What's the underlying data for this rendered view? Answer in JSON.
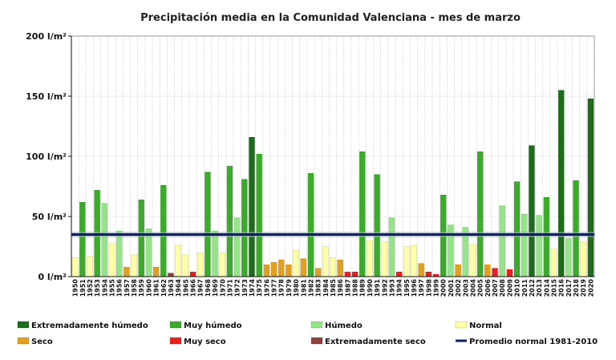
{
  "chart_data": {
    "type": "bar",
    "title": "Precipitación media en la Comunidad Valenciana - mes de marzo",
    "xlabel": "",
    "ylabel": "",
    "ylim": [
      0,
      200
    ],
    "yticks": [
      {
        "value": 0,
        "label": "0 l/m²"
      },
      {
        "value": 50,
        "label": "50 l/m²"
      },
      {
        "value": 100,
        "label": "100 l/m²"
      },
      {
        "value": 150,
        "label": "150 l/m²"
      },
      {
        "value": 200,
        "label": "200 l/m²"
      }
    ],
    "grid": true,
    "categories": [
      "1950",
      "1951",
      "1952",
      "1953",
      "1954",
      "1955",
      "1956",
      "1957",
      "1958",
      "1959",
      "1960",
      "1961",
      "1962",
      "1963",
      "1964",
      "1965",
      "1966",
      "1967",
      "1968",
      "1969",
      "1970",
      "1971",
      "1972",
      "1973",
      "1974",
      "1975",
      "1976",
      "1977",
      "1978",
      "1979",
      "1980",
      "1981",
      "1982",
      "1983",
      "1984",
      "1985",
      "1986",
      "1987",
      "1988",
      "1989",
      "1990",
      "1991",
      "1992",
      "1993",
      "1994",
      "1995",
      "1996",
      "1997",
      "1998",
      "1999",
      "2000",
      "2001",
      "2002",
      "2003",
      "2004",
      "2005",
      "2006",
      "2007",
      "2008",
      "2009",
      "2010",
      "2011",
      "2012",
      "2013",
      "2014",
      "2015",
      "2016",
      "2017",
      "2018",
      "2019",
      "2020"
    ],
    "values": [
      16,
      62,
      17,
      72,
      61,
      28,
      38,
      8,
      18,
      64,
      40,
      8,
      76,
      3,
      26,
      18,
      4,
      20,
      87,
      38,
      20,
      92,
      49,
      81,
      116,
      102,
      10,
      12,
      14,
      10,
      22,
      15,
      86,
      7,
      25,
      16,
      14,
      4,
      4,
      104,
      30,
      85,
      29,
      49,
      4,
      25,
      26,
      11,
      4,
      2,
      68,
      43,
      10,
      41,
      27,
      104,
      10,
      7,
      59,
      6,
      79,
      52,
      109,
      51,
      66,
      23,
      155,
      32,
      80,
      29,
      148
    ],
    "classes": [
      "N",
      "M",
      "N",
      "M",
      "H",
      "N",
      "H",
      "S",
      "N",
      "M",
      "H",
      "S",
      "M",
      "E",
      "N",
      "N",
      "V",
      "N",
      "M",
      "H",
      "N",
      "M",
      "H",
      "M",
      "X",
      "M",
      "S",
      "S",
      "S",
      "S",
      "N",
      "S",
      "M",
      "S",
      "N",
      "N",
      "S",
      "V",
      "V",
      "M",
      "N",
      "M",
      "N",
      "H",
      "V",
      "N",
      "N",
      "S",
      "V",
      "V",
      "M",
      "H",
      "S",
      "H",
      "N",
      "M",
      "S",
      "V",
      "H",
      "V",
      "M",
      "H",
      "X",
      "H",
      "M",
      "N",
      "X",
      "H",
      "M",
      "N",
      "X"
    ],
    "class_colors": {
      "X": "#1e6b1e",
      "M": "#3cab2b",
      "H": "#96e48a",
      "N": "#ffffa8",
      "S": "#e0a020",
      "V": "#e82020",
      "E": "#8b4242"
    },
    "reference_line": {
      "label": "Promedio normal 1981-2010",
      "value": 35,
      "color": "#0c1f5e"
    },
    "legend": [
      {
        "key": "X",
        "label": "Extremadamente húmedo",
        "color": "#1e6b1e"
      },
      {
        "key": "M",
        "label": "Muy húmedo",
        "color": "#3cab2b"
      },
      {
        "key": "H",
        "label": "Húmedo",
        "color": "#96e48a"
      },
      {
        "key": "N",
        "label": "Normal",
        "color": "#ffffa8"
      },
      {
        "key": "S",
        "label": "Seco",
        "color": "#e0a020"
      },
      {
        "key": "V",
        "label": "Muy seco",
        "color": "#e82020"
      },
      {
        "key": "E",
        "label": "Extremadamente seco",
        "color": "#8b4242"
      },
      {
        "key": "L",
        "label": "Promedio normal 1981-2010",
        "color": "#0c1f5e"
      }
    ],
    "legend_position": "bottom"
  }
}
